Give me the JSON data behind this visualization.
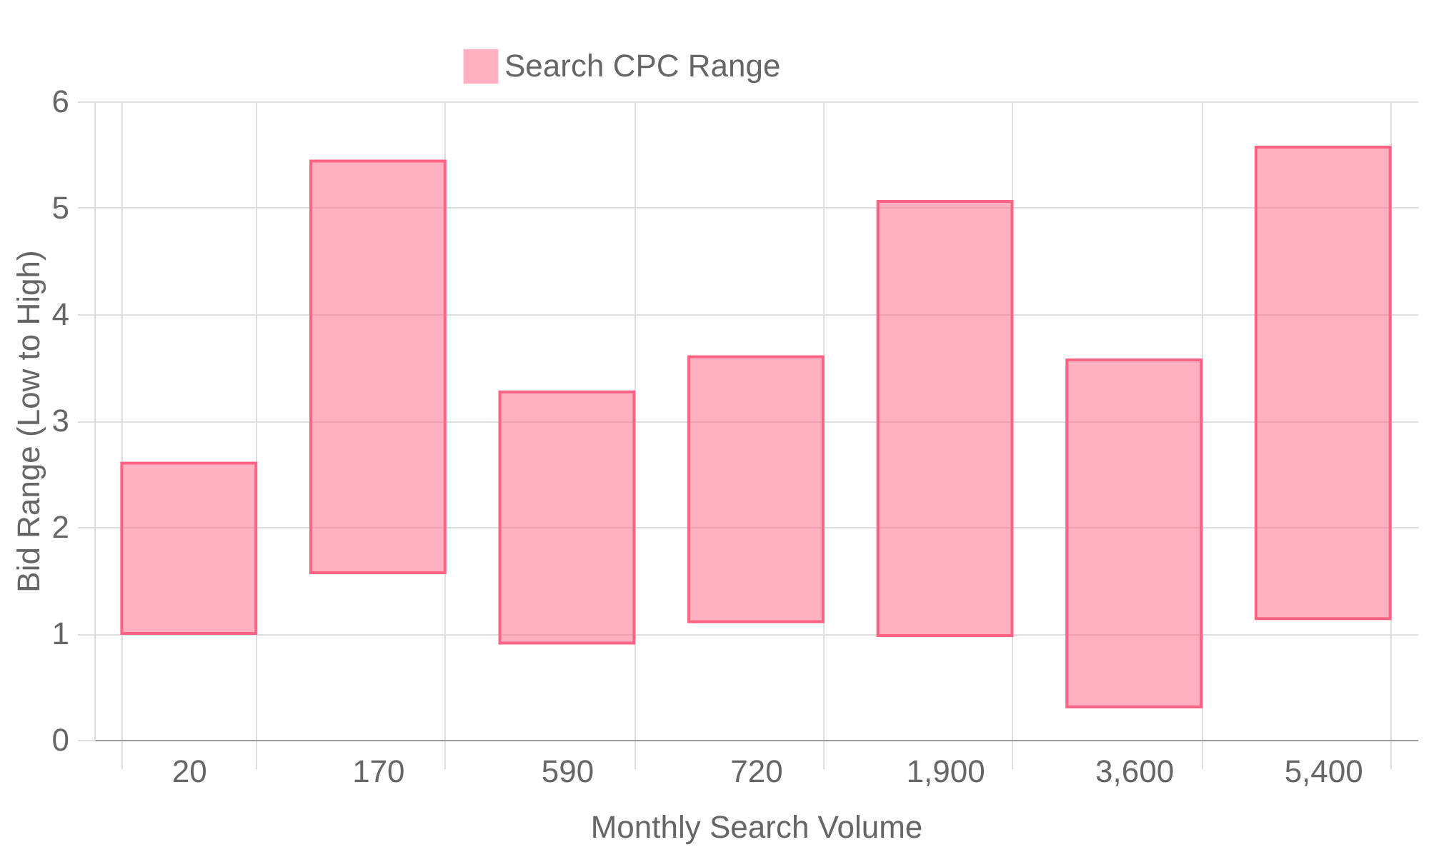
{
  "chart_data": {
    "type": "bar",
    "xlabel": "Monthly Search Volume",
    "ylabel": "Bid Range (Low to High)",
    "categories": [
      "20",
      "170",
      "590",
      "720",
      "1,900",
      "3,600",
      "5,400"
    ],
    "series": [
      {
        "name": "Search CPC Range",
        "color": "#ff6384",
        "values": [
          1.6,
          3.87,
          2.36,
          2.49,
          4.08,
          3.26,
          4.43
        ],
        "base": [
          1.0,
          1.57,
          0.91,
          1.11,
          0.98,
          0.31,
          1.14
        ]
      }
    ],
    "ylim": [
      0,
      6
    ],
    "yticks": [
      0,
      1,
      2,
      3,
      4,
      5,
      6
    ],
    "grid": true,
    "legend": "top"
  }
}
